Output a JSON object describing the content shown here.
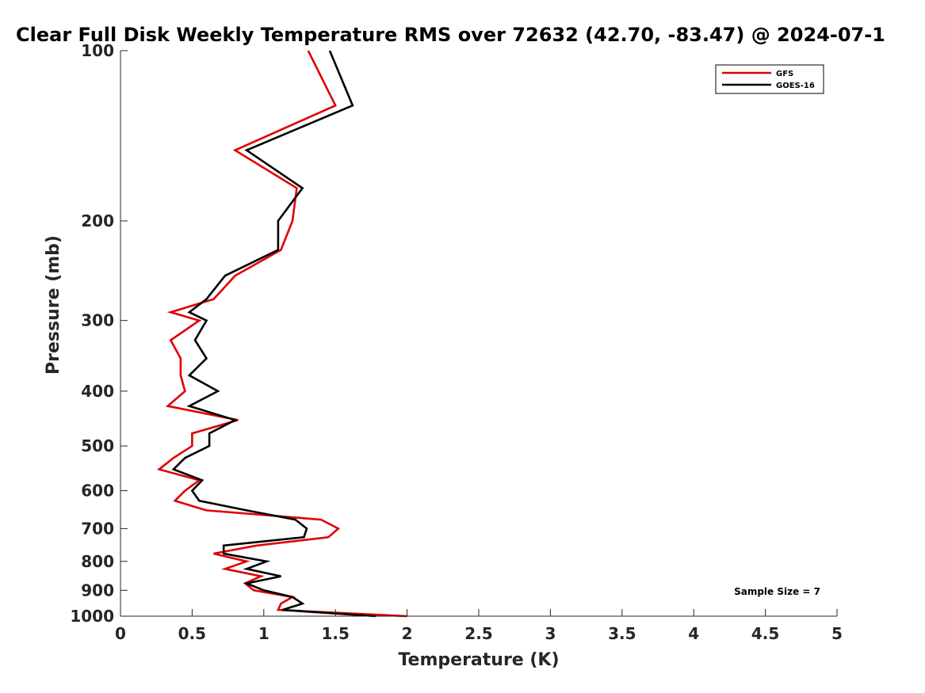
{
  "chart_data": {
    "type": "line",
    "title": "Clear Full Disk Weekly Temperature RMS over 72632 (42.70, -83.47) @ 2024-07-1",
    "xlabel": "Temperature (K)",
    "ylabel": "Pressure (mb)",
    "xlim": [
      0,
      5
    ],
    "ylim": [
      100,
      1000
    ],
    "y_scale": "log",
    "y_reversed": true,
    "xticks": [
      "0",
      "0.5",
      "1",
      "1.5",
      "2",
      "2.5",
      "3",
      "3.5",
      "4",
      "4.5",
      "5"
    ],
    "yticks": [
      "100",
      "200",
      "300",
      "400",
      "500",
      "600",
      "700",
      "800",
      "900",
      "1000"
    ],
    "grid": false,
    "legend_position": "top-right",
    "annotation": "Sample Size = 7",
    "series": [
      {
        "name": "GFS",
        "color": "#e00000",
        "points": [
          [
            1.31,
            100
          ],
          [
            1.5,
            125
          ],
          [
            0.8,
            150
          ],
          [
            1.23,
            175
          ],
          [
            1.2,
            200
          ],
          [
            1.12,
            225
          ],
          [
            0.8,
            250
          ],
          [
            0.65,
            275
          ],
          [
            0.35,
            290
          ],
          [
            0.55,
            300
          ],
          [
            0.35,
            325
          ],
          [
            0.42,
            350
          ],
          [
            0.42,
            375
          ],
          [
            0.45,
            400
          ],
          [
            0.33,
            425
          ],
          [
            0.82,
            450
          ],
          [
            0.5,
            475
          ],
          [
            0.5,
            500
          ],
          [
            0.37,
            525
          ],
          [
            0.27,
            550
          ],
          [
            0.55,
            575
          ],
          [
            0.45,
            600
          ],
          [
            0.38,
            625
          ],
          [
            0.6,
            650
          ],
          [
            1.4,
            675
          ],
          [
            1.52,
            700
          ],
          [
            1.45,
            725
          ],
          [
            0.95,
            750
          ],
          [
            0.65,
            775
          ],
          [
            0.88,
            800
          ],
          [
            0.73,
            825
          ],
          [
            0.98,
            850
          ],
          [
            0.87,
            875
          ],
          [
            0.93,
            900
          ],
          [
            1.2,
            925
          ],
          [
            1.12,
            950
          ],
          [
            1.1,
            975
          ],
          [
            2.0,
            1000
          ]
        ]
      },
      {
        "name": "GOES-16",
        "color": "#000000",
        "points": [
          [
            1.46,
            100
          ],
          [
            1.62,
            125
          ],
          [
            0.88,
            150
          ],
          [
            1.27,
            175
          ],
          [
            1.1,
            200
          ],
          [
            1.1,
            225
          ],
          [
            0.73,
            250
          ],
          [
            0.6,
            275
          ],
          [
            0.48,
            290
          ],
          [
            0.6,
            300
          ],
          [
            0.52,
            325
          ],
          [
            0.6,
            350
          ],
          [
            0.48,
            375
          ],
          [
            0.68,
            400
          ],
          [
            0.48,
            425
          ],
          [
            0.8,
            450
          ],
          [
            0.62,
            475
          ],
          [
            0.62,
            500
          ],
          [
            0.45,
            525
          ],
          [
            0.37,
            550
          ],
          [
            0.57,
            575
          ],
          [
            0.5,
            600
          ],
          [
            0.55,
            625
          ],
          [
            0.88,
            650
          ],
          [
            1.22,
            675
          ],
          [
            1.3,
            700
          ],
          [
            1.28,
            725
          ],
          [
            0.72,
            750
          ],
          [
            0.72,
            775
          ],
          [
            1.02,
            800
          ],
          [
            0.88,
            825
          ],
          [
            1.12,
            850
          ],
          [
            0.88,
            875
          ],
          [
            1.0,
            900
          ],
          [
            1.2,
            925
          ],
          [
            1.27,
            950
          ],
          [
            1.13,
            975
          ],
          [
            1.78,
            1000
          ]
        ]
      }
    ]
  }
}
